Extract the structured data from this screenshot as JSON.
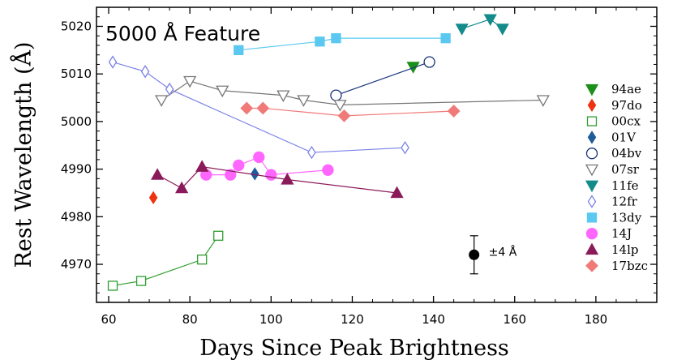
{
  "chart_data": {
    "type": "scatter",
    "title": "5000 Å Feature",
    "xlabel": "Days Since Peak Brightness",
    "ylabel": "Rest Wavelength (Å)",
    "xlim": [
      57,
      195
    ],
    "ylim": [
      4962,
      5024
    ],
    "xticks": [
      60,
      80,
      100,
      120,
      140,
      160,
      180
    ],
    "yticks": [
      4970,
      4980,
      4990,
      5000,
      5010,
      5020
    ],
    "error_bar": {
      "x": 150,
      "y": 4972,
      "err": 4,
      "label": "±4 Å"
    },
    "series": [
      {
        "name": "94ae",
        "color": "#1a8f1a",
        "marker": "triangle-down",
        "filled": true,
        "connected": false,
        "points": [
          [
            135,
            5011.5
          ]
        ]
      },
      {
        "name": "97do",
        "color": "#ee3311",
        "marker": "thin-diamond",
        "filled": true,
        "connected": false,
        "points": [
          [
            71,
            4984
          ]
        ]
      },
      {
        "name": "00cx",
        "color": "#2e9e2e",
        "marker": "square",
        "filled": false,
        "connected": true,
        "points": [
          [
            61,
            4965.5
          ],
          [
            68,
            4966.5
          ],
          [
            83,
            4971
          ],
          [
            87,
            4976
          ]
        ]
      },
      {
        "name": "01V",
        "color": "#1f5c99",
        "marker": "thin-diamond",
        "filled": true,
        "connected": false,
        "points": [
          [
            96,
            4989
          ]
        ]
      },
      {
        "name": "04bv",
        "color": "#17357a",
        "marker": "circle",
        "filled": false,
        "connected": true,
        "points": [
          [
            116,
            5005.5
          ],
          [
            139,
            5012.5
          ]
        ]
      },
      {
        "name": "07sr",
        "color": "#777777",
        "marker": "triangle-down",
        "filled": false,
        "connected": true,
        "points": [
          [
            73,
            5004.5
          ],
          [
            80,
            5008.5
          ],
          [
            88,
            5006.5
          ],
          [
            103,
            5005.5
          ],
          [
            108,
            5004.5
          ],
          [
            117,
            5003.5
          ],
          [
            167,
            5004.5
          ]
        ]
      },
      {
        "name": "11fe",
        "color": "#138b8b",
        "marker": "triangle-down",
        "filled": true,
        "connected": true,
        "points": [
          [
            147,
            5019.5
          ],
          [
            154,
            5021.5
          ],
          [
            157,
            5019.5
          ]
        ]
      },
      {
        "name": "12fr",
        "color": "#7b82e6",
        "marker": "thin-diamond",
        "filled": false,
        "connected": true,
        "points": [
          [
            61,
            5012.5
          ],
          [
            69,
            5010.5
          ],
          [
            75,
            5006.8
          ],
          [
            110,
            4993.5
          ],
          [
            133,
            4994.5
          ]
        ]
      },
      {
        "name": "13dy",
        "color": "#5ac8f0",
        "marker": "square",
        "filled": true,
        "connected": true,
        "points": [
          [
            92,
            5015
          ],
          [
            112,
            5016.8
          ],
          [
            116,
            5017.5
          ],
          [
            143,
            5017.5
          ]
        ]
      },
      {
        "name": "14J",
        "color": "#ff66ff",
        "marker": "circle",
        "filled": true,
        "connected": true,
        "points": [
          [
            84,
            4988.8
          ],
          [
            90,
            4988.8
          ],
          [
            92,
            4990.8
          ],
          [
            97,
            4992.5
          ],
          [
            100,
            4988.8
          ],
          [
            114,
            4989.8
          ]
        ]
      },
      {
        "name": "14lp",
        "color": "#8b1a5a",
        "marker": "triangle-up",
        "filled": true,
        "connected": true,
        "points": [
          [
            72,
            4988.8
          ],
          [
            78,
            4986
          ],
          [
            83,
            4990.5
          ],
          [
            104,
            4987.8
          ],
          [
            131,
            4985
          ]
        ]
      },
      {
        "name": "17bzc",
        "color": "#f07a78",
        "marker": "diamond",
        "filled": true,
        "connected": true,
        "points": [
          [
            94,
            5002.8
          ],
          [
            98,
            5002.8
          ],
          [
            118,
            5001.2
          ],
          [
            145,
            5002.2
          ]
        ]
      }
    ]
  }
}
